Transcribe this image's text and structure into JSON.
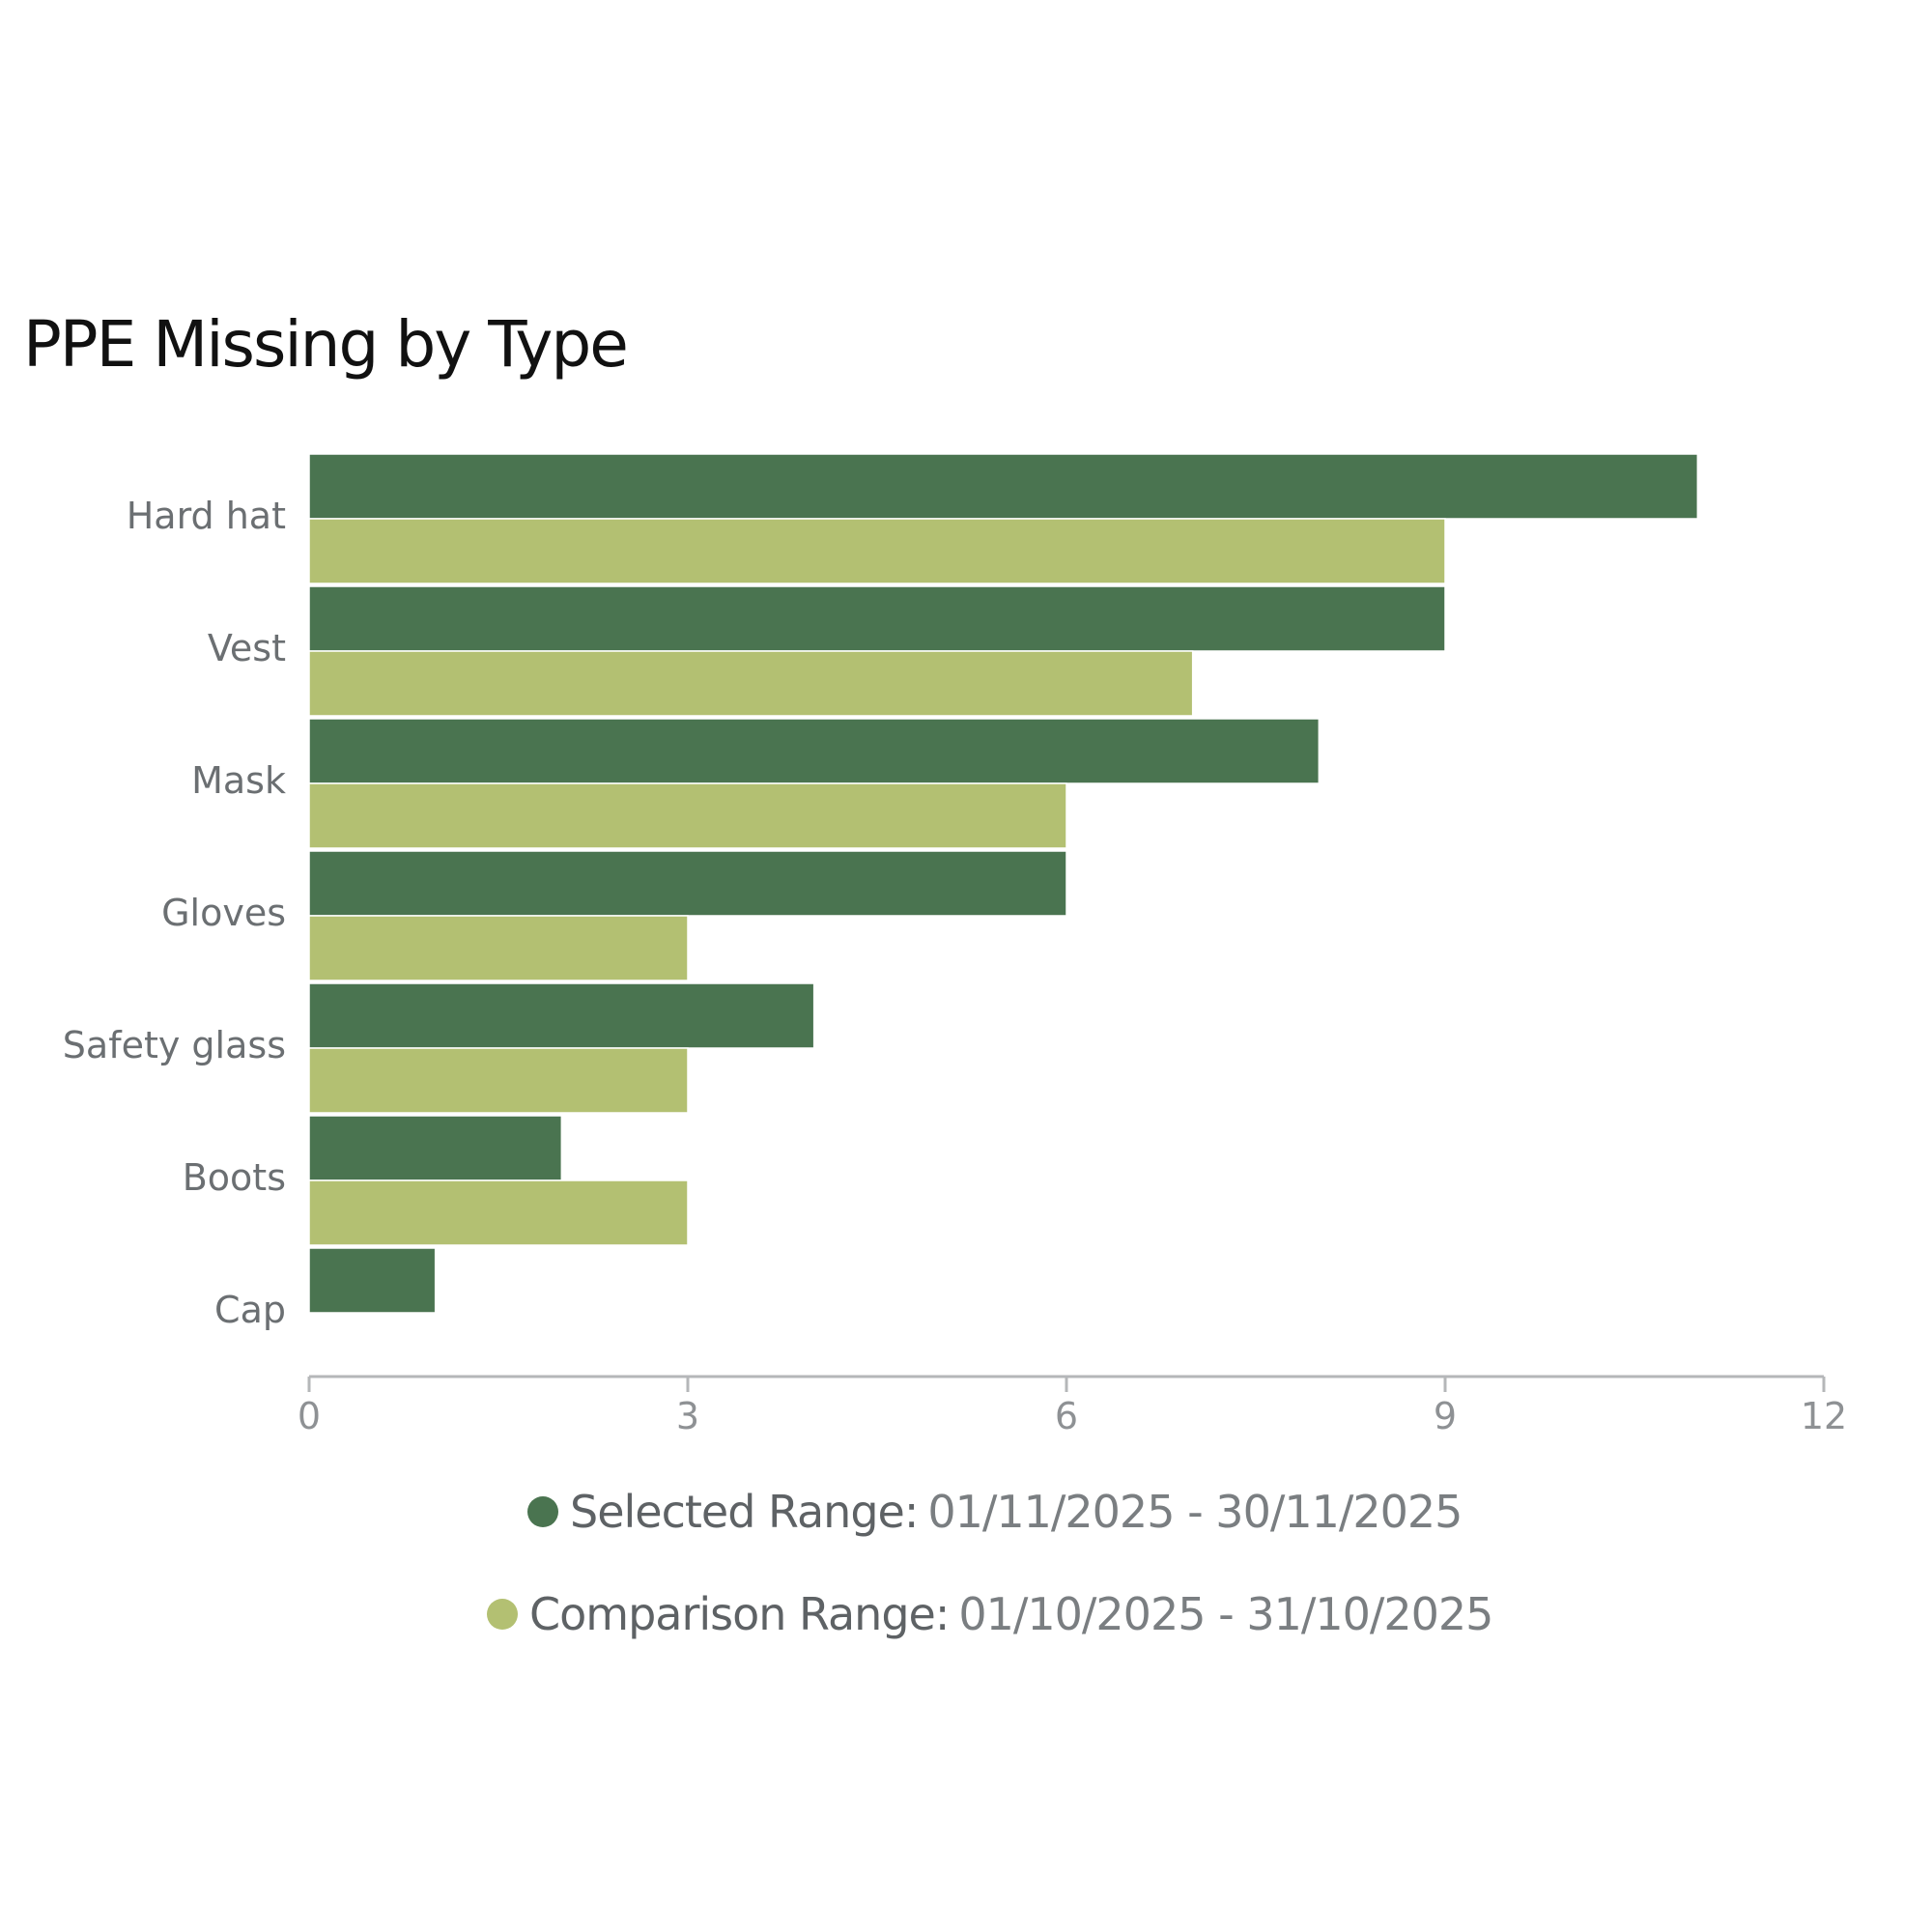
{
  "chart_data": {
    "type": "bar",
    "orientation": "horizontal",
    "title": "PPE Missing by Type",
    "categories": [
      "Hard hat",
      "Vest",
      "Mask",
      "Gloves",
      "Safety glass",
      "Boots",
      "Cap"
    ],
    "series": [
      {
        "name": "Selected Range",
        "range": "01/11/2025 - 30/11/2025",
        "color": "#4a7450",
        "values": [
          11,
          9,
          8,
          6,
          4,
          2,
          1
        ]
      },
      {
        "name": "Comparison Range",
        "range": "01/10/2025 - 31/10/2025",
        "color": "#b3c072",
        "values": [
          9,
          7,
          6,
          3,
          3,
          3,
          0
        ]
      }
    ],
    "xlim": [
      0,
      12
    ],
    "xticks": [
      "0",
      "3",
      "6",
      "9",
      "12"
    ],
    "xlabel": "",
    "ylabel": "",
    "grid": false,
    "legend_position": "bottom"
  }
}
